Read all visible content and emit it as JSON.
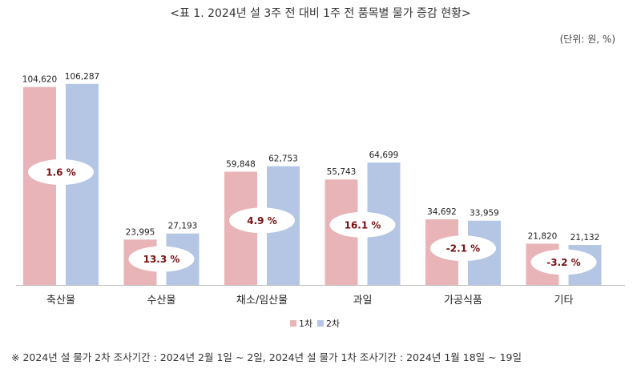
{
  "header": {
    "title": "<표 1. 2024년 설 3주 전 대비 1주 전 품목별 물가 증감 현황>",
    "unit": "(단위: 원, %)"
  },
  "footnote": "※ 2024년 설 물가 2차 조사기간 : 2024년 2월 1일 ~ 2일, 2024년 설 물가 1차 조사기간 : 2024년 1월 18일 ~ 19일",
  "chart_data": {
    "type": "bar",
    "categories": [
      "축산물",
      "수산물",
      "채소/임산물",
      "과일",
      "가공식품",
      "기타"
    ],
    "series": [
      {
        "name": "1차",
        "color": "#e8b4b7",
        "values": [
          104620,
          23995,
          59848,
          55743,
          34692,
          21820
        ]
      },
      {
        "name": "2차",
        "color": "#b4c6e4",
        "values": [
          106287,
          27193,
          62753,
          64699,
          33959,
          21132
        ]
      }
    ],
    "value_labels": {
      "1차": [
        "104,620",
        "23,995",
        "59,848",
        "55,743",
        "34,692",
        "21,820"
      ],
      "2차": [
        "106,287",
        "27,193",
        "62,753",
        "64,699",
        "33,959",
        "21,132"
      ]
    },
    "change_labels": [
      "1.6 %",
      "13.3 %",
      "4.9 %",
      "16.1 %",
      "-2.1 %",
      "-3.2 %"
    ],
    "change_color": "#7a0f12",
    "ylim": [
      0,
      110000
    ],
    "legend": "bottom-center",
    "grid": false
  }
}
